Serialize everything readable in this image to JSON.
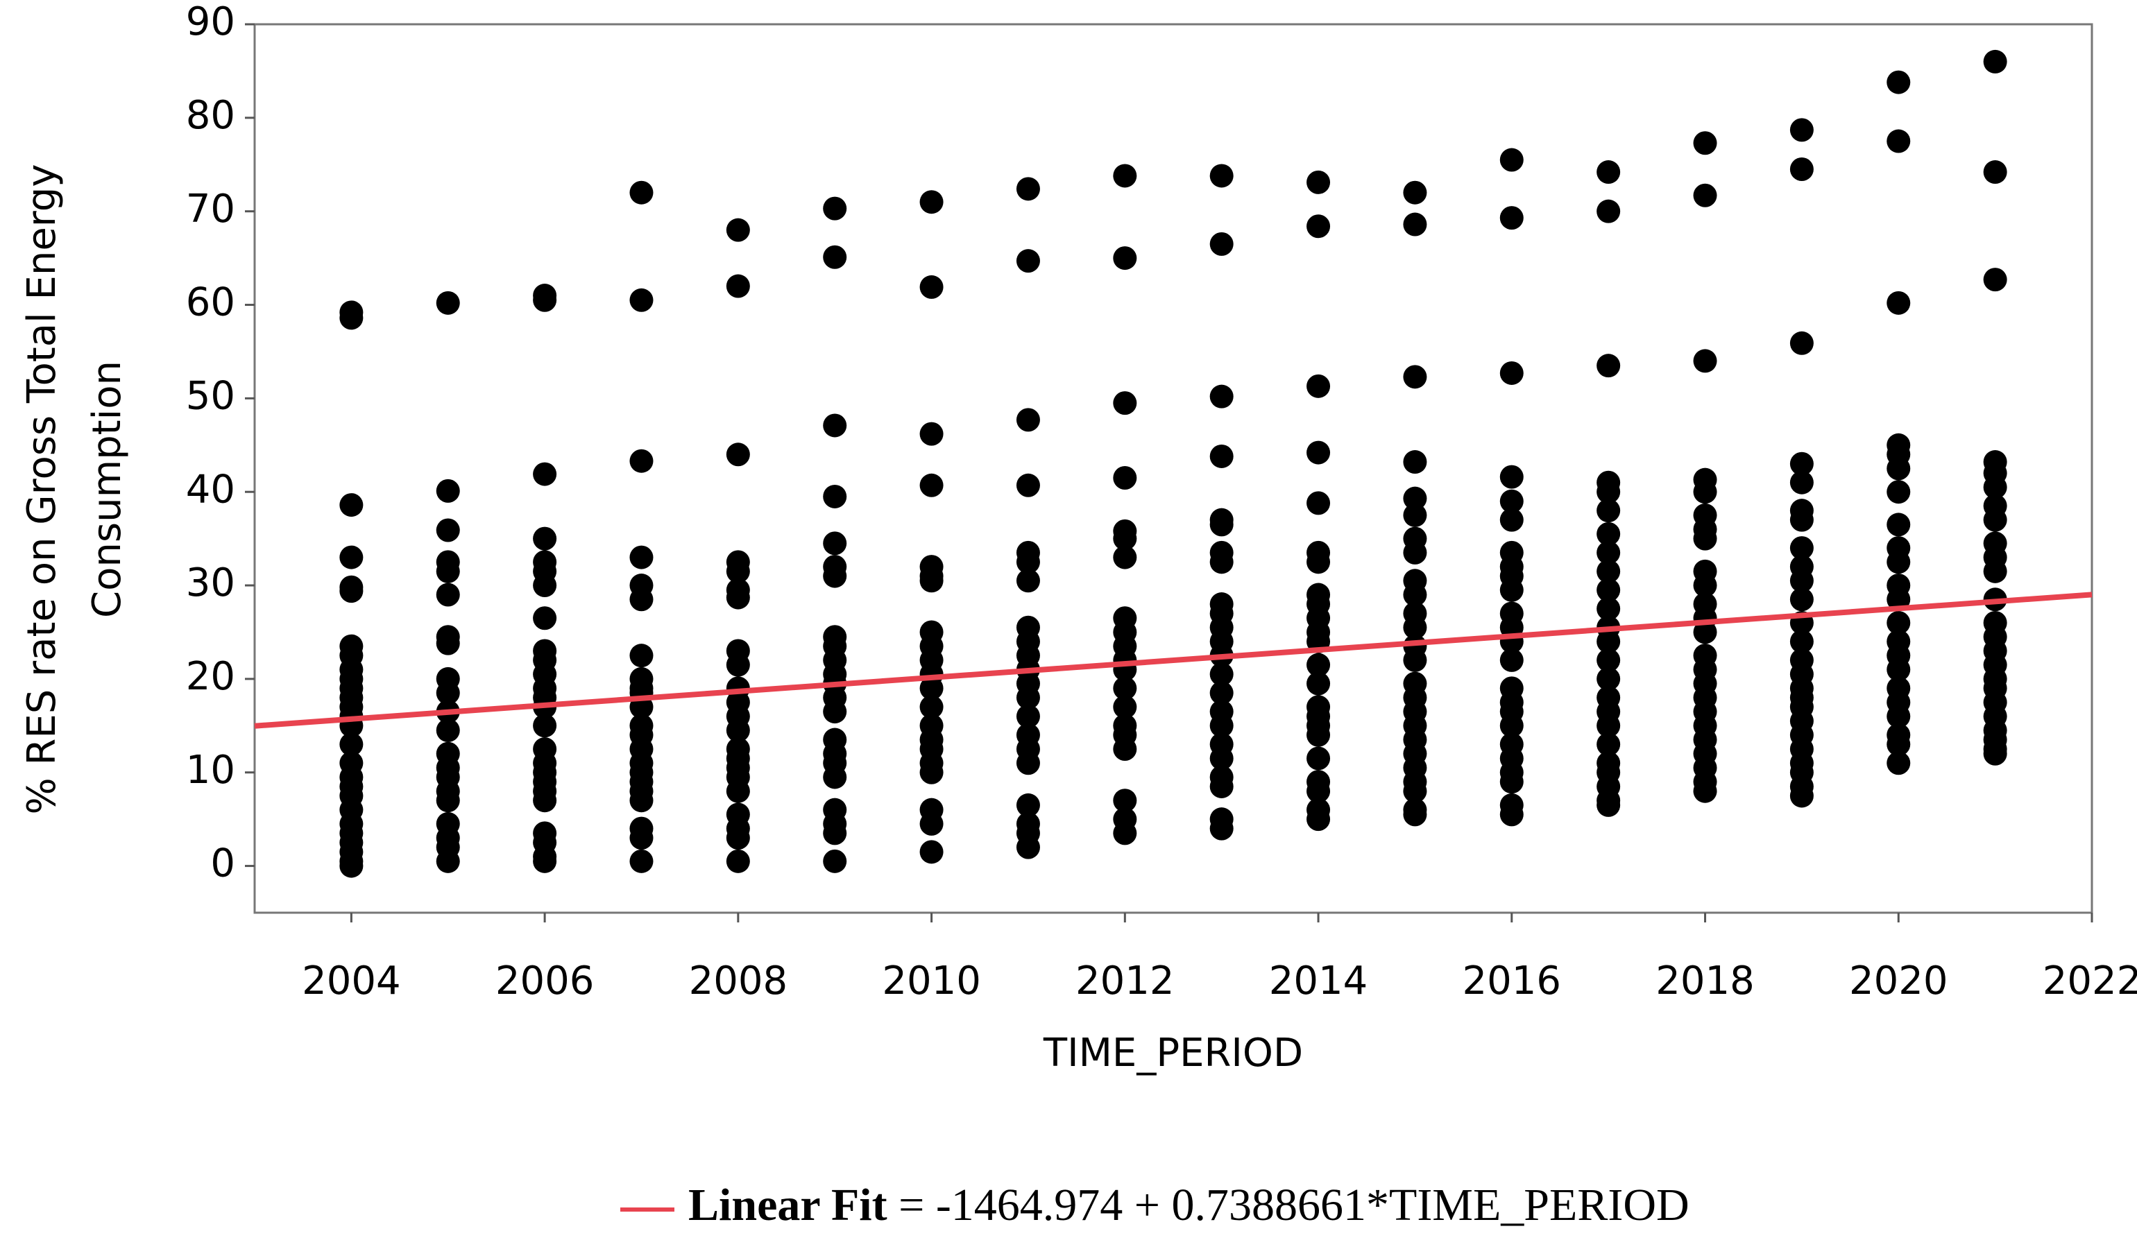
{
  "chart_data": {
    "type": "scatter",
    "xlabel": "TIME_PERIOD",
    "ylabel": [
      "% RES rate on Gross Total Energy",
      "Consumption"
    ],
    "xlim": [
      2003,
      2022
    ],
    "ylim": [
      -5,
      90
    ],
    "xticks": [
      2004,
      2006,
      2008,
      2010,
      2012,
      2014,
      2016,
      2018,
      2020,
      2022
    ],
    "yticks": [
      0,
      10,
      20,
      30,
      40,
      50,
      60,
      70,
      80,
      90
    ],
    "series": [
      {
        "color": "#000000",
        "x": [
          2004,
          2004,
          2004,
          2004,
          2004,
          2004,
          2004,
          2004,
          2004,
          2004,
          2004,
          2004,
          2004,
          2004,
          2004,
          2004,
          2004,
          2004,
          2004,
          2004,
          2004,
          2004,
          2004,
          2004,
          2004,
          2004,
          2004,
          2005,
          2005,
          2005,
          2005,
          2005,
          2005,
          2005,
          2005,
          2005,
          2005,
          2005,
          2005,
          2005,
          2005,
          2005,
          2005,
          2005,
          2005,
          2005,
          2005,
          2005,
          2006,
          2006,
          2006,
          2006,
          2006,
          2006,
          2006,
          2006,
          2006,
          2006,
          2006,
          2006,
          2006,
          2006,
          2006,
          2006,
          2006,
          2006,
          2006,
          2006,
          2006,
          2006,
          2006,
          2006,
          2006,
          2007,
          2007,
          2007,
          2007,
          2007,
          2007,
          2007,
          2007,
          2007,
          2007,
          2007,
          2007,
          2007,
          2007,
          2007,
          2007,
          2007,
          2007,
          2007,
          2007,
          2007,
          2007,
          2008,
          2008,
          2008,
          2008,
          2008,
          2008,
          2008,
          2008,
          2008,
          2008,
          2008,
          2008,
          2008,
          2008,
          2008,
          2008,
          2008,
          2008,
          2008,
          2008,
          2008,
          2008,
          2009,
          2009,
          2009,
          2009,
          2009,
          2009,
          2009,
          2009,
          2009,
          2009,
          2009,
          2009,
          2009,
          2009,
          2009,
          2009,
          2009,
          2009,
          2009,
          2009,
          2009,
          2009,
          2010,
          2010,
          2010,
          2010,
          2010,
          2010,
          2010,
          2010,
          2010,
          2010,
          2010,
          2010,
          2010,
          2010,
          2010,
          2010,
          2010,
          2010,
          2010,
          2010,
          2010,
          2011,
          2011,
          2011,
          2011,
          2011,
          2011,
          2011,
          2011,
          2011,
          2011,
          2011,
          2011,
          2011,
          2011,
          2011,
          2011,
          2011,
          2011,
          2011,
          2011,
          2011,
          2012,
          2012,
          2012,
          2012,
          2012,
          2012,
          2012,
          2012,
          2012,
          2012,
          2012,
          2012,
          2012,
          2012,
          2012,
          2012,
          2012,
          2012,
          2012,
          2012,
          2013,
          2013,
          2013,
          2013,
          2013,
          2013,
          2013,
          2013,
          2013,
          2013,
          2013,
          2013,
          2013,
          2013,
          2013,
          2013,
          2013,
          2013,
          2013,
          2013,
          2013,
          2013,
          2013,
          2014,
          2014,
          2014,
          2014,
          2014,
          2014,
          2014,
          2014,
          2014,
          2014,
          2014,
          2014,
          2014,
          2014,
          2014,
          2014,
          2014,
          2014,
          2014,
          2014,
          2014,
          2014,
          2014,
          2015,
          2015,
          2015,
          2015,
          2015,
          2015,
          2015,
          2015,
          2015,
          2015,
          2015,
          2015,
          2015,
          2015,
          2015,
          2015,
          2015,
          2015,
          2015,
          2015,
          2015,
          2015,
          2015,
          2015,
          2015,
          2016,
          2016,
          2016,
          2016,
          2016,
          2016,
          2016,
          2016,
          2016,
          2016,
          2016,
          2016,
          2016,
          2016,
          2016,
          2016,
          2016,
          2016,
          2016,
          2016,
          2016,
          2016,
          2016,
          2016,
          2017,
          2017,
          2017,
          2017,
          2017,
          2017,
          2017,
          2017,
          2017,
          2017,
          2017,
          2017,
          2017,
          2017,
          2017,
          2017,
          2017,
          2017,
          2017,
          2017,
          2017,
          2017,
          2017,
          2017,
          2018,
          2018,
          2018,
          2018,
          2018,
          2018,
          2018,
          2018,
          2018,
          2018,
          2018,
          2018,
          2018,
          2018,
          2018,
          2018,
          2018,
          2018,
          2018,
          2018,
          2018,
          2018,
          2018,
          2018,
          2019,
          2019,
          2019,
          2019,
          2019,
          2019,
          2019,
          2019,
          2019,
          2019,
          2019,
          2019,
          2019,
          2019,
          2019,
          2019,
          2019,
          2019,
          2019,
          2019,
          2019,
          2019,
          2019,
          2019,
          2019,
          2020,
          2020,
          2020,
          2020,
          2020,
          2020,
          2020,
          2020,
          2020,
          2020,
          2020,
          2020,
          2020,
          2020,
          2020,
          2020,
          2020,
          2020,
          2020,
          2020,
          2020,
          2020,
          2021,
          2021,
          2021,
          2021,
          2021,
          2021,
          2021,
          2021,
          2021,
          2021,
          2021,
          2021,
          2021,
          2021,
          2021,
          2021,
          2021,
          2021,
          2021,
          2021,
          2021,
          2021,
          2021,
          2021
        ],
        "values": [
          59.2,
          58.6,
          38.6,
          33,
          29.8,
          29.4,
          23.5,
          22.5,
          21,
          20,
          19,
          18,
          17,
          16,
          15,
          13,
          11,
          9.5,
          8.5,
          7.5,
          6,
          4.5,
          3.5,
          2.5,
          1.5,
          0.5,
          0,
          60.2,
          40.1,
          35.9,
          32.5,
          31.5,
          29,
          24.5,
          23.8,
          20,
          18.5,
          16.5,
          14.5,
          12,
          10.5,
          9.5,
          8,
          7,
          4.5,
          3,
          2,
          0.5,
          61,
          60.5,
          41.9,
          35,
          32.5,
          31.5,
          30,
          26.5,
          23,
          22,
          20.5,
          19,
          18,
          17,
          15,
          12.5,
          11,
          10,
          9,
          8,
          7,
          3.5,
          2.5,
          1,
          0.5,
          72,
          60.5,
          43.3,
          33,
          30,
          28.5,
          22.5,
          20,
          19,
          18.5,
          17,
          15,
          14,
          12.5,
          11,
          10,
          9,
          8,
          7,
          4,
          3,
          0.5,
          68,
          62,
          44,
          32.5,
          31.5,
          29.5,
          28.7,
          23,
          21.5,
          19,
          17.5,
          16,
          14.5,
          12.5,
          11.5,
          10.5,
          9.5,
          8,
          5.5,
          4,
          3,
          0.5,
          70.3,
          65.1,
          47.1,
          39.5,
          34.5,
          32,
          31,
          24.5,
          23.5,
          22,
          20.5,
          19.5,
          18,
          16.5,
          13.5,
          12,
          11,
          9.5,
          6,
          4.5,
          3.5,
          0.5,
          71,
          61.9,
          46.2,
          40.7,
          32,
          31,
          30.5,
          25,
          23.5,
          22,
          20.5,
          19,
          17,
          15,
          13.5,
          12.5,
          11,
          10,
          6,
          4.5,
          1.5,
          72.4,
          64.7,
          47.7,
          40.7,
          33.5,
          32.5,
          30.5,
          25.5,
          24,
          22.5,
          21,
          19.5,
          18,
          16,
          14,
          12.5,
          11,
          6.5,
          4.5,
          3.5,
          2,
          73.8,
          65,
          49.5,
          41.5,
          35.8,
          35,
          33,
          26.5,
          25,
          23.5,
          22,
          21,
          19,
          17,
          15,
          14,
          12.5,
          7,
          5,
          3.5,
          73.8,
          66.5,
          50.2,
          43.8,
          37,
          36.5,
          33.5,
          32.5,
          28,
          27,
          25.5,
          24,
          22.5,
          20.5,
          18.5,
          16.5,
          15,
          13,
          11.5,
          9.5,
          8.5,
          5,
          4,
          73.1,
          68.4,
          51.3,
          44.2,
          38.8,
          33.5,
          32.5,
          29,
          28,
          26.5,
          25,
          24,
          21.5,
          19.5,
          17,
          16,
          15,
          14,
          11.5,
          9,
          8,
          6,
          5,
          72,
          68.6,
          52.3,
          43.2,
          39.3,
          37.5,
          35,
          33.5,
          30.5,
          29,
          27,
          25.5,
          23.5,
          22,
          19.5,
          18,
          16.5,
          15,
          13.5,
          12,
          10.5,
          9,
          8,
          6,
          5.5,
          75.5,
          69.3,
          52.7,
          41.6,
          39,
          37,
          33.5,
          32,
          31,
          29.5,
          27,
          25.5,
          24,
          22,
          19,
          17.5,
          16.5,
          15,
          13,
          11.5,
          10,
          9,
          6.5,
          5.5,
          74.2,
          70,
          53.5,
          41,
          40,
          38,
          35.5,
          33.5,
          31.5,
          29.5,
          27.5,
          25.5,
          24,
          22,
          20,
          18,
          16.5,
          15,
          13,
          11,
          10,
          8.5,
          7,
          6.5,
          77.3,
          71.7,
          54,
          41.3,
          40,
          37.5,
          36,
          35,
          31.5,
          30,
          28,
          26.5,
          25,
          22.5,
          21,
          19.5,
          18,
          16.5,
          15,
          13.5,
          12,
          10.5,
          9,
          8,
          78.7,
          74.5,
          55.9,
          43,
          41,
          38,
          37,
          34,
          32,
          30.5,
          28.5,
          26,
          24,
          22,
          20.5,
          19,
          18,
          17,
          15.5,
          14,
          12.5,
          11,
          10,
          8.5,
          7.5,
          83.8,
          77.5,
          60.2,
          45,
          44,
          42.5,
          40,
          36.5,
          34,
          32.5,
          30,
          28.5,
          26,
          24,
          22.5,
          21,
          19,
          17.5,
          16,
          14,
          13,
          11,
          86,
          74.2,
          62.7,
          43.2,
          42,
          40.5,
          38.5,
          37,
          34.5,
          33,
          31.5,
          28.5,
          26,
          24.5,
          23,
          21.5,
          20,
          19,
          17.5,
          16,
          14.5,
          13.5,
          12.5,
          12
        ]
      }
    ],
    "fit": {
      "name": "Linear Fit",
      "equation": "= -1464.974 + 0.7388661*TIME_PERIOD",
      "color": "#e8434f",
      "x": [
        2003,
        2022
      ],
      "values": [
        14.97,
        29.01
      ]
    }
  }
}
